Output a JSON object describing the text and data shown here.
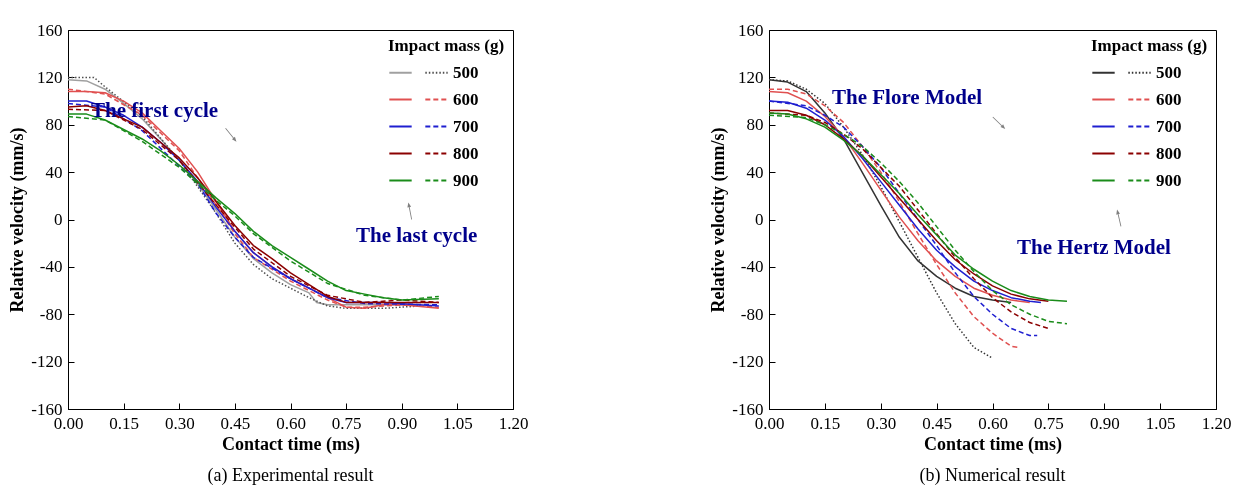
{
  "chart_data": [
    {
      "type": "line",
      "title": "(a) Experimental result",
      "xlabel": "Contact time (ms)",
      "ylabel": "Relative velocity (mm/s)",
      "legend_title": "Impact mass (g)",
      "legend": "top right",
      "marker": "none",
      "grid": false,
      "xlim": [
        0,
        1.2
      ],
      "ylim": [
        -160,
        160
      ],
      "xticks": [
        {
          "value": 0,
          "label": "0.00"
        },
        {
          "value": 0.15,
          "label": "0.15"
        },
        {
          "value": 0.3,
          "label": "0.30"
        },
        {
          "value": 0.45,
          "label": "0.45"
        },
        {
          "value": 0.6,
          "label": "0.60"
        },
        {
          "value": 0.75,
          "label": "0.75"
        },
        {
          "value": 0.9,
          "label": "0.90"
        },
        {
          "value": 1.05,
          "label": "1.05"
        },
        {
          "value": 1.2,
          "label": "1.20"
        }
      ],
      "yticks": [
        -160,
        -120,
        -80,
        -40,
        0,
        40,
        80,
        120,
        160
      ],
      "annotations": [
        "The first cycle",
        "The last cycle"
      ],
      "series": [
        {
          "name": null,
          "color": "#a0a0a0",
          "line_style": "solid",
          "x": [
            0,
            0.05,
            0.1,
            0.15,
            0.2,
            0.25,
            0.3,
            0.35,
            0.4,
            0.45,
            0.5,
            0.55,
            0.6,
            0.65,
            0.67,
            0.7,
            0.8,
            0.95
          ],
          "values": [
            118,
            117,
            110,
            98,
            85,
            68,
            50,
            30,
            8,
            -15,
            -33,
            -45,
            -55,
            -62,
            -70,
            -72,
            -72,
            -72
          ]
        },
        {
          "name": "500",
          "color": "#505050",
          "line_style": "dotted",
          "x": [
            0,
            0.07,
            0.1,
            0.2,
            0.3,
            0.4,
            0.45,
            0.5,
            0.55,
            0.6,
            0.65,
            0.7,
            0.75,
            0.85,
            0.95
          ],
          "values": [
            120,
            120,
            112,
            87,
            50,
            5,
            -20,
            -38,
            -50,
            -58,
            -66,
            -73,
            -75,
            -75,
            -73
          ]
        },
        {
          "name": null,
          "color": "#e05050",
          "line_style": "solid",
          "x": [
            0,
            0.05,
            0.1,
            0.15,
            0.2,
            0.25,
            0.3,
            0.35,
            0.4,
            0.45,
            0.5,
            0.55,
            0.6,
            0.65,
            0.7,
            0.75,
            0.8,
            0.85,
            0.9,
            1.0
          ],
          "values": [
            108,
            108,
            107,
            100,
            90,
            75,
            60,
            40,
            15,
            -10,
            -28,
            -40,
            -50,
            -58,
            -66,
            -74,
            -75,
            -72,
            -72,
            -75
          ]
        },
        {
          "name": "600",
          "color": "#e05050",
          "line_style": "dashed",
          "x": [
            0,
            0.1,
            0.2,
            0.3,
            0.4,
            0.45,
            0.5,
            0.6,
            0.7,
            0.75,
            0.8,
            0.9,
            1.0
          ],
          "values": [
            110,
            106,
            88,
            58,
            12,
            -12,
            -32,
            -52,
            -68,
            -74,
            -74,
            -72,
            -74
          ]
        },
        {
          "name": null,
          "color": "#1f1fd0",
          "line_style": "solid",
          "x": [
            0,
            0.05,
            0.1,
            0.15,
            0.2,
            0.25,
            0.3,
            0.35,
            0.4,
            0.45,
            0.5,
            0.55,
            0.6,
            0.65,
            0.7,
            0.75,
            0.85,
            1.0
          ],
          "values": [
            100,
            100,
            95,
            88,
            78,
            65,
            50,
            32,
            10,
            -10,
            -28,
            -40,
            -50,
            -58,
            -66,
            -70,
            -70,
            -73
          ]
        },
        {
          "name": "700",
          "color": "#1f1fd0",
          "line_style": "dashed",
          "x": [
            0,
            0.1,
            0.2,
            0.3,
            0.35,
            0.4,
            0.45,
            0.5,
            0.6,
            0.7,
            0.8,
            1.0
          ],
          "values": [
            98,
            95,
            75,
            45,
            30,
            5,
            -15,
            -32,
            -50,
            -66,
            -71,
            -72
          ]
        },
        {
          "name": null,
          "color": "#8b0000",
          "line_style": "solid",
          "x": [
            0,
            0.05,
            0.1,
            0.15,
            0.2,
            0.25,
            0.3,
            0.35,
            0.4,
            0.45,
            0.5,
            0.55,
            0.6,
            0.65,
            0.7,
            0.75,
            0.85,
            1.0
          ],
          "values": [
            95,
            96,
            92,
            85,
            78,
            65,
            52,
            35,
            15,
            -5,
            -22,
            -33,
            -45,
            -55,
            -65,
            -70,
            -70,
            -70
          ]
        },
        {
          "name": "800",
          "color": "#8b0000",
          "line_style": "dashed",
          "x": [
            0,
            0.1,
            0.2,
            0.3,
            0.4,
            0.5,
            0.6,
            0.7,
            0.8,
            0.9,
            1.0
          ],
          "values": [
            93,
            92,
            76,
            50,
            12,
            -25,
            -48,
            -64,
            -70,
            -68,
            -70
          ]
        },
        {
          "name": null,
          "color": "#1a8c1a",
          "line_style": "solid",
          "x": [
            0,
            0.05,
            0.1,
            0.15,
            0.2,
            0.25,
            0.3,
            0.35,
            0.4,
            0.45,
            0.5,
            0.55,
            0.6,
            0.65,
            0.7,
            0.75,
            0.8,
            0.85,
            0.9,
            1.0
          ],
          "values": [
            89,
            89,
            84,
            76,
            68,
            58,
            46,
            32,
            18,
            5,
            -10,
            -22,
            -32,
            -42,
            -52,
            -60,
            -63,
            -66,
            -68,
            -67
          ]
        },
        {
          "name": "900",
          "color": "#1a8c1a",
          "line_style": "dashed",
          "x": [
            0,
            0.1,
            0.2,
            0.3,
            0.4,
            0.45,
            0.5,
            0.6,
            0.7,
            0.8,
            0.9,
            1.0
          ],
          "values": [
            87,
            84,
            66,
            44,
            16,
            3,
            -12,
            -35,
            -54,
            -64,
            -68,
            -65
          ]
        }
      ]
    },
    {
      "type": "line",
      "title": "(b) Numerical result",
      "xlabel": "Contact time (ms)",
      "ylabel": "Relative velocity (mm/s)",
      "legend_title": "Impact mass (g)",
      "legend": "top right",
      "marker": "none",
      "grid": false,
      "xlim": [
        0,
        1.2
      ],
      "ylim": [
        -160,
        160
      ],
      "xticks": [
        {
          "value": 0,
          "label": "0.00"
        },
        {
          "value": 0.15,
          "label": "0.15"
        },
        {
          "value": 0.3,
          "label": "0.30"
        },
        {
          "value": 0.45,
          "label": "0.45"
        },
        {
          "value": 0.6,
          "label": "0.60"
        },
        {
          "value": 0.75,
          "label": "0.75"
        },
        {
          "value": 0.9,
          "label": "0.90"
        },
        {
          "value": 1.05,
          "label": "1.05"
        },
        {
          "value": 1.2,
          "label": "1.20"
        }
      ],
      "yticks": [
        -160,
        -120,
        -80,
        -40,
        0,
        40,
        80,
        120,
        160
      ],
      "annotations": [
        "The Flore Model",
        "The Hertz Model"
      ],
      "series": [
        {
          "name": null,
          "color": "#333333",
          "line_style": "solid",
          "x": [
            0,
            0.05,
            0.1,
            0.15,
            0.2,
            0.25,
            0.3,
            0.35,
            0.4,
            0.45,
            0.5,
            0.55,
            0.6,
            0.65
          ],
          "values": [
            118,
            116,
            108,
            90,
            68,
            40,
            12,
            -15,
            -35,
            -48,
            -58,
            -65,
            -68,
            -70
          ]
        },
        {
          "name": "500",
          "color": "#333333",
          "line_style": "dotted",
          "x": [
            0,
            0.05,
            0.1,
            0.15,
            0.2,
            0.25,
            0.3,
            0.35,
            0.4,
            0.45,
            0.5,
            0.55,
            0.6
          ],
          "values": [
            118,
            117,
            110,
            98,
            78,
            55,
            28,
            -2,
            -32,
            -62,
            -88,
            -108,
            -117
          ]
        },
        {
          "name": null,
          "color": "#e05050",
          "line_style": "solid",
          "x": [
            0,
            0.05,
            0.1,
            0.15,
            0.2,
            0.25,
            0.3,
            0.35,
            0.4,
            0.45,
            0.5,
            0.55,
            0.6,
            0.65,
            0.7
          ],
          "values": [
            108,
            107,
            100,
            87,
            70,
            48,
            25,
            2,
            -18,
            -35,
            -48,
            -58,
            -64,
            -68,
            -70
          ]
        },
        {
          "name": "600",
          "color": "#e05050",
          "line_style": "dashed",
          "x": [
            0,
            0.05,
            0.1,
            0.15,
            0.2,
            0.25,
            0.3,
            0.35,
            0.4,
            0.45,
            0.5,
            0.55,
            0.6,
            0.65,
            0.67
          ],
          "values": [
            110,
            110,
            106,
            96,
            82,
            62,
            40,
            15,
            -12,
            -38,
            -62,
            -82,
            -96,
            -107,
            -108
          ]
        },
        {
          "name": null,
          "color": "#1f1fd0",
          "line_style": "solid",
          "x": [
            0,
            0.05,
            0.1,
            0.15,
            0.2,
            0.25,
            0.3,
            0.35,
            0.4,
            0.45,
            0.5,
            0.55,
            0.6,
            0.65,
            0.7,
            0.73
          ],
          "values": [
            100,
            99,
            94,
            84,
            70,
            52,
            32,
            12,
            -8,
            -26,
            -40,
            -52,
            -60,
            -66,
            -69,
            -70
          ]
        },
        {
          "name": "700",
          "color": "#1f1fd0",
          "line_style": "dashed",
          "x": [
            0,
            0.1,
            0.15,
            0.2,
            0.25,
            0.3,
            0.35,
            0.4,
            0.45,
            0.5,
            0.55,
            0.6,
            0.65,
            0.7,
            0.72
          ],
          "values": [
            100,
            96,
            88,
            78,
            62,
            44,
            22,
            0,
            -22,
            -45,
            -65,
            -80,
            -92,
            -98,
            -98
          ]
        },
        {
          "name": null,
          "color": "#8b0000",
          "line_style": "solid",
          "x": [
            0,
            0.05,
            0.1,
            0.15,
            0.2,
            0.25,
            0.3,
            0.35,
            0.4,
            0.45,
            0.5,
            0.55,
            0.6,
            0.65,
            0.7,
            0.75
          ],
          "values": [
            92,
            92,
            88,
            80,
            68,
            54,
            36,
            18,
            0,
            -18,
            -34,
            -46,
            -56,
            -63,
            -67,
            -69
          ]
        },
        {
          "name": "800",
          "color": "#8b0000",
          "line_style": "dashed",
          "x": [
            0,
            0.1,
            0.15,
            0.2,
            0.25,
            0.3,
            0.35,
            0.4,
            0.45,
            0.5,
            0.55,
            0.6,
            0.65,
            0.7,
            0.75
          ],
          "values": [
            90,
            88,
            82,
            72,
            60,
            44,
            28,
            8,
            -12,
            -32,
            -50,
            -66,
            -78,
            -87,
            -92
          ]
        },
        {
          "name": null,
          "color": "#1a8c1a",
          "line_style": "solid",
          "x": [
            0,
            0.05,
            0.1,
            0.15,
            0.2,
            0.25,
            0.3,
            0.35,
            0.4,
            0.45,
            0.5,
            0.55,
            0.6,
            0.65,
            0.7,
            0.75,
            0.8
          ],
          "values": [
            90,
            89,
            85,
            78,
            67,
            54,
            38,
            22,
            4,
            -13,
            -30,
            -42,
            -52,
            -60,
            -65,
            -68,
            -69
          ]
        },
        {
          "name": "900",
          "color": "#1a8c1a",
          "line_style": "dashed",
          "x": [
            0,
            0.1,
            0.15,
            0.2,
            0.25,
            0.3,
            0.35,
            0.4,
            0.45,
            0.5,
            0.55,
            0.6,
            0.65,
            0.7,
            0.75,
            0.8
          ],
          "values": [
            88,
            86,
            80,
            72,
            62,
            48,
            32,
            14,
            -6,
            -26,
            -44,
            -60,
            -72,
            -80,
            -86,
            -88
          ]
        }
      ]
    }
  ]
}
